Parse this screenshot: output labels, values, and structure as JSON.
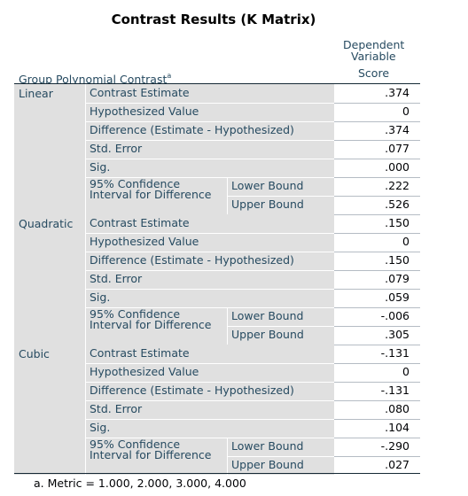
{
  "title": "Contrast Results (K Matrix)",
  "header": {
    "row_label": "Group Polynomial Contrast",
    "row_label_sup": "a",
    "dep_var_line1": "Dependent",
    "dep_var_line2": "Variable",
    "score": "Score"
  },
  "labels": {
    "contrast_estimate": "Contrast Estimate",
    "hypothesized_value": "Hypothesized Value",
    "difference": "Difference (Estimate - Hypothesized)",
    "std_error": "Std. Error",
    "sig": "Sig.",
    "ci_line1": "95% Confidence",
    "ci_line2": "Interval for Difference",
    "lower": "Lower Bound",
    "upper": "Upper Bound"
  },
  "groups": [
    {
      "name": "Linear",
      "values": [
        ".374",
        "0",
        ".374",
        ".077",
        ".000",
        ".222",
        ".526"
      ]
    },
    {
      "name": "Quadratic",
      "values": [
        ".150",
        "0",
        ".150",
        ".079",
        ".059",
        "-.006",
        ".305"
      ]
    },
    {
      "name": "Cubic",
      "values": [
        "-.131",
        "0",
        "-.131",
        ".080",
        ".104",
        "-.290",
        ".027"
      ]
    }
  ],
  "footnote": "a. Metric = 1.000, 2.000, 3.000, 4.000"
}
